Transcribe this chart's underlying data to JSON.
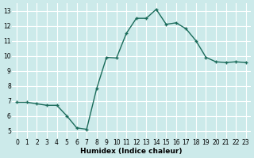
{
  "x": [
    0,
    1,
    2,
    3,
    4,
    5,
    6,
    7,
    8,
    9,
    10,
    11,
    12,
    13,
    14,
    15,
    16,
    17,
    18,
    19,
    20,
    21,
    22,
    23
  ],
  "y": [
    6.9,
    6.9,
    6.8,
    6.7,
    6.7,
    6.0,
    5.2,
    5.1,
    7.8,
    9.9,
    9.85,
    11.5,
    12.5,
    12.5,
    13.1,
    12.1,
    12.2,
    11.8,
    11.0,
    9.9,
    9.6,
    9.55,
    9.6,
    9.55
  ],
  "xlabel": "Humidex (Indice chaleur)",
  "ylim_min": 4.5,
  "ylim_max": 13.5,
  "xlim_min": -0.5,
  "xlim_max": 23.5,
  "yticks": [
    5,
    6,
    7,
    8,
    9,
    10,
    11,
    12,
    13
  ],
  "xticks": [
    0,
    1,
    2,
    3,
    4,
    5,
    6,
    7,
    8,
    9,
    10,
    11,
    12,
    13,
    14,
    15,
    16,
    17,
    18,
    19,
    20,
    21,
    22,
    23
  ],
  "line_color": "#1a6b5a",
  "bg_color": "#cceaea",
  "grid_color": "#ffffff",
  "fig_bg": "#cceaea",
  "tick_fontsize": 5.5,
  "xlabel_fontsize": 6.5
}
